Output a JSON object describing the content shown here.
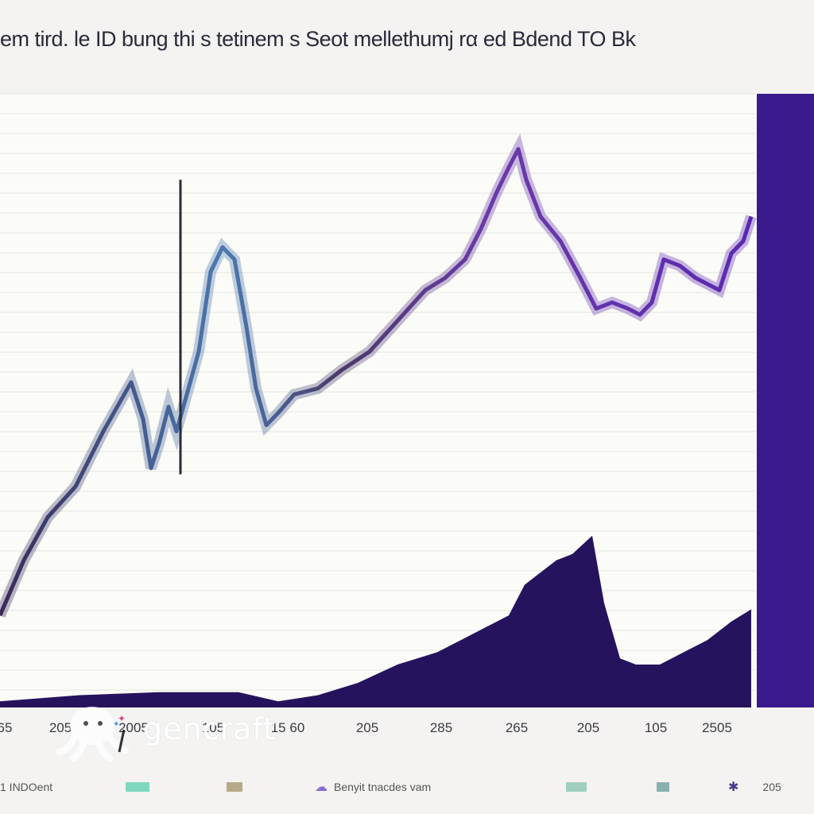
{
  "title": "em tird. le ID bung thi s tetinem s Seot mellethumj rα ed Bdend TO Bk",
  "chart_data": {
    "type": "area",
    "xlabel": "",
    "ylabel": "",
    "x_ticks": [
      "65",
      "205",
      "2005",
      "105",
      "15 60",
      "205",
      "285",
      "265",
      "205",
      "105",
      "2505"
    ],
    "ylim": [
      0,
      100
    ],
    "grid": true,
    "series": [
      {
        "kind": "line",
        "color_start": "#3a2a5a",
        "color_mid": "#4a7ab0",
        "color_end": "#5a28b0",
        "x": [
          0,
          30,
          60,
          95,
          130,
          165,
          180,
          190,
          200,
          212,
          222,
          235,
          250,
          265,
          280,
          295,
          310,
          322,
          335,
          350,
          370,
          400,
          430,
          465,
          500,
          535,
          560,
          585,
          605,
          625,
          640,
          652,
          662,
          680,
          705,
          730,
          750,
          770,
          790,
          805,
          820,
          835,
          855,
          875,
          890,
          905,
          920,
          935,
          945
        ],
        "y": [
          15,
          24,
          31,
          36,
          45,
          53,
          47,
          39,
          43,
          49,
          45,
          51,
          58,
          71,
          75,
          73,
          62,
          52,
          46,
          48,
          51,
          52,
          55,
          58,
          63,
          68,
          70,
          73,
          78,
          84,
          88,
          91,
          86,
          80,
          76,
          70,
          65,
          66,
          65,
          64,
          66,
          73,
          72,
          70,
          69,
          68,
          74,
          76,
          80
        ]
      },
      {
        "kind": "spike",
        "x": 227,
        "y_top": 86,
        "y_bottom": 38
      },
      {
        "kind": "area",
        "color": "#26135e",
        "x": [
          0,
          100,
          200,
          300,
          350,
          400,
          450,
          500,
          550,
          580,
          610,
          640,
          660,
          680,
          700,
          720,
          745,
          760,
          780,
          800,
          830,
          860,
          890,
          920,
          945
        ],
        "y": [
          1,
          2,
          2.5,
          2.5,
          1,
          2,
          4,
          7,
          9,
          11,
          13,
          15,
          20,
          22,
          24,
          25,
          28,
          17,
          8,
          7,
          7,
          9,
          11,
          14,
          16
        ]
      },
      {
        "kind": "bar",
        "color": "#3a1a8c",
        "x_start": 952,
        "x_end": 1024,
        "value": 100
      }
    ]
  },
  "legend": [
    {
      "label": "1 INDOent",
      "color": "#7a70c0"
    },
    {
      "label": "",
      "color": "#7fd8c0"
    },
    {
      "label": "",
      "color": "#b8aa88"
    },
    {
      "label": "Benyit tnacdes vam",
      "color": "#8a6ad0"
    },
    {
      "label": "",
      "color": "#9fcfbf"
    },
    {
      "label": "",
      "color": "#8ab0b0"
    },
    {
      "label": "205",
      "color": "#4a3a8c"
    }
  ],
  "watermark": "gencraft"
}
